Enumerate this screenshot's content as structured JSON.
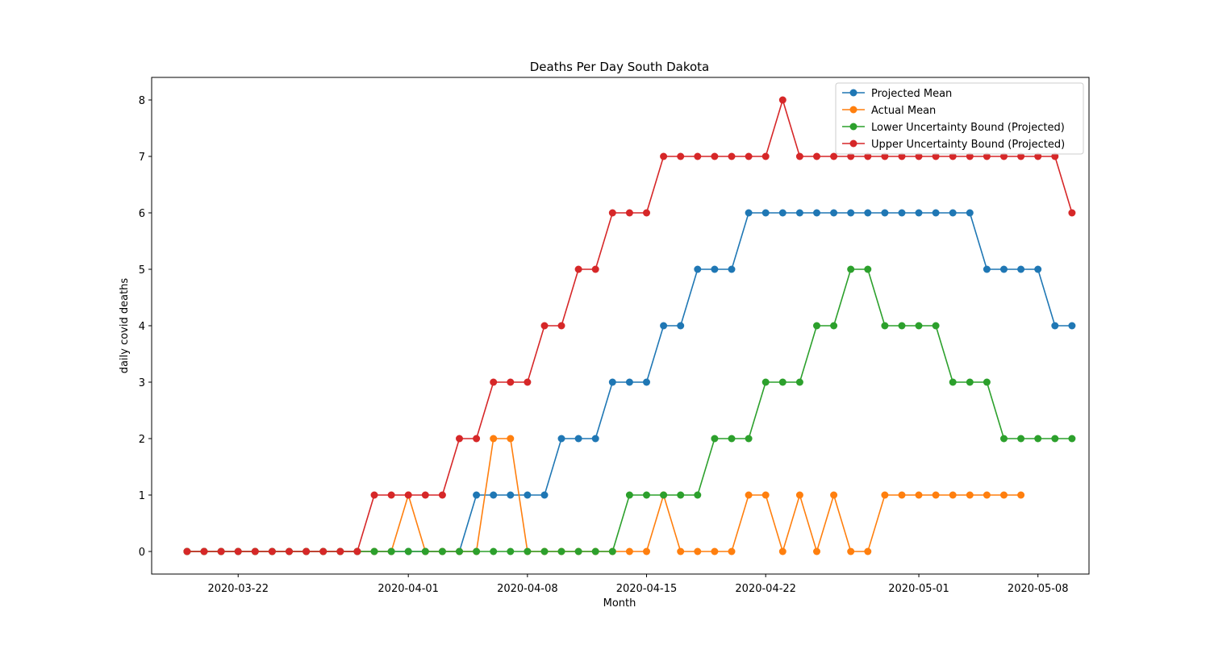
{
  "chart_data": {
    "type": "line",
    "title": "Deaths Per Day South Dakota",
    "xlabel": "Month",
    "ylabel": "daily covid deaths",
    "x_start_date": "2020-03-19",
    "x_ticks": [
      "2020-03-22",
      "2020-04-01",
      "2020-04-08",
      "2020-04-15",
      "2020-04-22",
      "2020-05-01",
      "2020-05-08"
    ],
    "y_ticks": [
      0,
      1,
      2,
      3,
      4,
      5,
      6,
      7,
      8
    ],
    "xlim": [
      "2020-03-16T22:00",
      "2020-05-11"
    ],
    "ylim": [
      -0.4,
      8.4
    ],
    "legend_position": "upper-right",
    "grid": false,
    "series": [
      {
        "name": "Projected Mean",
        "color": "#1f77b4",
        "start_date": "2020-03-19",
        "values": [
          0,
          0,
          0,
          0,
          0,
          0,
          0,
          0,
          0,
          0,
          0,
          0,
          0,
          0,
          0,
          0,
          0,
          1,
          1,
          1,
          1,
          1,
          2,
          2,
          2,
          3,
          3,
          3,
          4,
          4,
          5,
          5,
          5,
          6,
          6,
          6,
          6,
          6,
          6,
          6,
          6,
          6,
          6,
          6,
          6,
          6,
          6,
          5,
          5,
          5,
          5,
          4,
          4
        ]
      },
      {
        "name": "Actual Mean",
        "color": "#ff7f0e",
        "start_date": "2020-03-19",
        "values": [
          0,
          0,
          0,
          0,
          0,
          0,
          0,
          0,
          0,
          0,
          0,
          0,
          0,
          1,
          0,
          0,
          0,
          0,
          2,
          2,
          0,
          0,
          0,
          0,
          0,
          0,
          0,
          0,
          1,
          0,
          0,
          0,
          0,
          1,
          1,
          0,
          1,
          0,
          1,
          0,
          0,
          1,
          1,
          1,
          1,
          1,
          1,
          1,
          1,
          1
        ]
      },
      {
        "name": "Lower Uncertainty Bound (Projected)",
        "color": "#2ca02c",
        "start_date": "2020-03-19",
        "values": [
          0,
          0,
          0,
          0,
          0,
          0,
          0,
          0,
          0,
          0,
          0,
          0,
          0,
          0,
          0,
          0,
          0,
          0,
          0,
          0,
          0,
          0,
          0,
          0,
          0,
          0,
          1,
          1,
          1,
          1,
          1,
          2,
          2,
          2,
          3,
          3,
          3,
          4,
          4,
          5,
          5,
          4,
          4,
          4,
          4,
          3,
          3,
          3,
          2,
          2,
          2,
          2,
          2
        ]
      },
      {
        "name": "Upper Uncertainty Bound (Projected)",
        "color": "#d62728",
        "start_date": "2020-03-19",
        "values": [
          0,
          0,
          0,
          0,
          0,
          0,
          0,
          0,
          0,
          0,
          0,
          1,
          1,
          1,
          1,
          1,
          2,
          2,
          3,
          3,
          3,
          4,
          4,
          5,
          5,
          6,
          6,
          6,
          7,
          7,
          7,
          7,
          7,
          7,
          7,
          8,
          7,
          7,
          7,
          7,
          7,
          7,
          7,
          7,
          7,
          7,
          7,
          7,
          7,
          7,
          7,
          7,
          6
        ]
      }
    ]
  }
}
